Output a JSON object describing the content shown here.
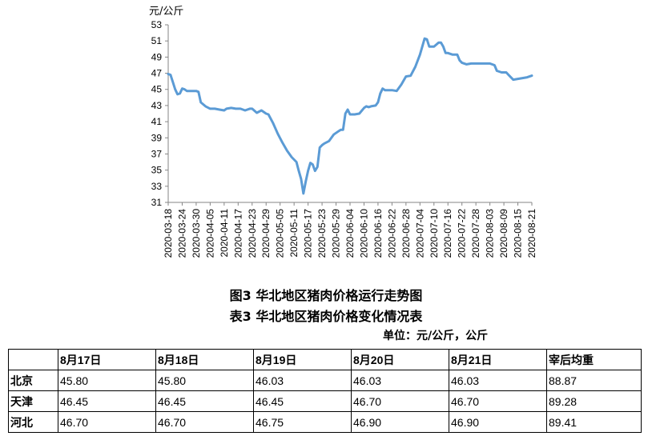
{
  "chart_data": {
    "type": "line",
    "title": "图3 华北地区猪肉价格运行走势图",
    "ylabel": "元/公斤",
    "xlabel": "",
    "ylim": [
      31,
      53
    ],
    "yticks": [
      31,
      33,
      35,
      37,
      39,
      41,
      43,
      45,
      47,
      49,
      51,
      53
    ],
    "grid": false,
    "legend": "none",
    "line_color": "#5b9bd5",
    "x_tick_labels": [
      "2020-03-18",
      "2020-03-24",
      "2020-03-30",
      "2020-04-05",
      "2020-04-11",
      "2020-04-17",
      "2020-04-23",
      "2020-04-29",
      "2020-05-05",
      "2020-05-11",
      "2020-05-17",
      "2020-05-23",
      "2020-05-29",
      "2020-06-04",
      "2020-06-10",
      "2020-06-16",
      "2020-06-22",
      "2020-06-28",
      "2020-07-04",
      "2020-07-10",
      "2020-07-16",
      "2020-07-22",
      "2020-07-28",
      "2020-08-03",
      "2020-08-09",
      "2020-08-15",
      "2020-08-21"
    ],
    "series": [
      {
        "x": [
          "2020-03-18",
          "2020-03-19",
          "2020-03-20",
          "2020-03-21",
          "2020-03-22",
          "2020-03-23",
          "2020-03-24",
          "2020-03-25",
          "2020-03-26",
          "2020-03-27",
          "2020-03-30",
          "2020-03-31",
          "2020-04-01",
          "2020-04-03",
          "2020-04-05",
          "2020-04-07",
          "2020-04-09",
          "2020-04-11",
          "2020-04-12",
          "2020-04-14",
          "2020-04-16",
          "2020-04-18",
          "2020-04-20",
          "2020-04-22",
          "2020-04-23",
          "2020-04-25",
          "2020-04-27",
          "2020-04-28",
          "2020-04-29",
          "2020-04-30",
          "2020-05-02",
          "2020-05-04",
          "2020-05-06",
          "2020-05-08",
          "2020-05-10",
          "2020-05-12",
          "2020-05-13",
          "2020-05-14",
          "2020-05-15",
          "2020-05-16",
          "2020-05-17",
          "2020-05-18",
          "2020-05-19",
          "2020-05-20",
          "2020-05-21",
          "2020-05-22",
          "2020-05-23",
          "2020-05-24",
          "2020-05-26",
          "2020-05-27",
          "2020-05-28",
          "2020-05-30",
          "2020-05-31",
          "2020-06-01",
          "2020-06-02",
          "2020-06-03",
          "2020-06-04",
          "2020-06-05",
          "2020-06-06",
          "2020-06-08",
          "2020-06-10",
          "2020-06-11",
          "2020-06-12",
          "2020-06-13",
          "2020-06-15",
          "2020-06-16",
          "2020-06-17",
          "2020-06-18",
          "2020-06-19",
          "2020-06-22",
          "2020-06-24",
          "2020-06-26",
          "2020-06-28",
          "2020-06-30",
          "2020-07-02",
          "2020-07-04",
          "2020-07-06",
          "2020-07-07",
          "2020-07-08",
          "2020-07-09",
          "2020-07-10",
          "2020-07-12",
          "2020-07-13",
          "2020-07-14",
          "2020-07-15",
          "2020-07-16",
          "2020-07-18",
          "2020-07-20",
          "2020-07-21",
          "2020-07-22",
          "2020-07-24",
          "2020-07-26",
          "2020-07-28",
          "2020-07-30",
          "2020-08-01",
          "2020-08-03",
          "2020-08-05",
          "2020-08-06",
          "2020-08-08",
          "2020-08-10",
          "2020-08-11",
          "2020-08-13",
          "2020-08-15",
          "2020-08-17",
          "2020-08-19",
          "2020-08-20",
          "2020-08-21"
        ],
        "y": [
          46.9,
          46.8,
          45.9,
          45.0,
          44.4,
          44.5,
          45.1,
          45.0,
          44.8,
          44.8,
          44.8,
          44.7,
          43.4,
          42.9,
          42.6,
          42.6,
          42.5,
          42.4,
          42.6,
          42.7,
          42.6,
          42.6,
          42.4,
          42.6,
          42.6,
          42.1,
          42.4,
          42.2,
          42.0,
          41.9,
          40.8,
          39.5,
          38.4,
          37.4,
          36.6,
          36.0,
          34.9,
          33.9,
          32.1,
          33.6,
          34.9,
          35.9,
          35.7,
          34.9,
          35.4,
          37.8,
          38.1,
          38.3,
          38.6,
          39.0,
          39.4,
          39.8,
          40.0,
          40.0,
          42.0,
          42.5,
          41.9,
          41.9,
          41.9,
          42.0,
          42.7,
          42.9,
          42.8,
          42.9,
          43.0,
          43.4,
          44.5,
          45.1,
          44.9,
          44.9,
          44.8,
          45.6,
          46.6,
          46.7,
          47.8,
          49.3,
          51.3,
          51.2,
          50.3,
          50.3,
          50.3,
          50.8,
          50.8,
          50.3,
          49.5,
          49.5,
          49.3,
          49.3,
          48.6,
          48.3,
          48.1,
          48.2,
          48.2,
          48.2,
          48.2,
          48.2,
          48.0,
          47.3,
          47.1,
          47.1,
          46.8,
          46.2,
          46.3,
          46.4,
          46.5,
          46.6,
          46.7
        ]
      }
    ]
  },
  "captions": {
    "figure": "图3 华北地区猪肉价格运行走势图",
    "table": "表3 华北地区猪肉价格变化情况表",
    "unit": "单位：元/公斤，公斤"
  },
  "table": {
    "headers": [
      "",
      "8月17日",
      "8月18日",
      "8月19日",
      "8月20日",
      "8月21日",
      "宰后均重"
    ],
    "rows": [
      {
        "region": "北京",
        "cells": [
          "45.80",
          "45.80",
          "46.03",
          "46.03",
          "46.03",
          "88.87"
        ]
      },
      {
        "region": "天津",
        "cells": [
          "46.45",
          "46.45",
          "46.45",
          "46.70",
          "46.70",
          "89.28"
        ]
      },
      {
        "region": "河北",
        "cells": [
          "46.70",
          "46.70",
          "46.75",
          "46.90",
          "46.90",
          "89.41"
        ]
      }
    ]
  }
}
